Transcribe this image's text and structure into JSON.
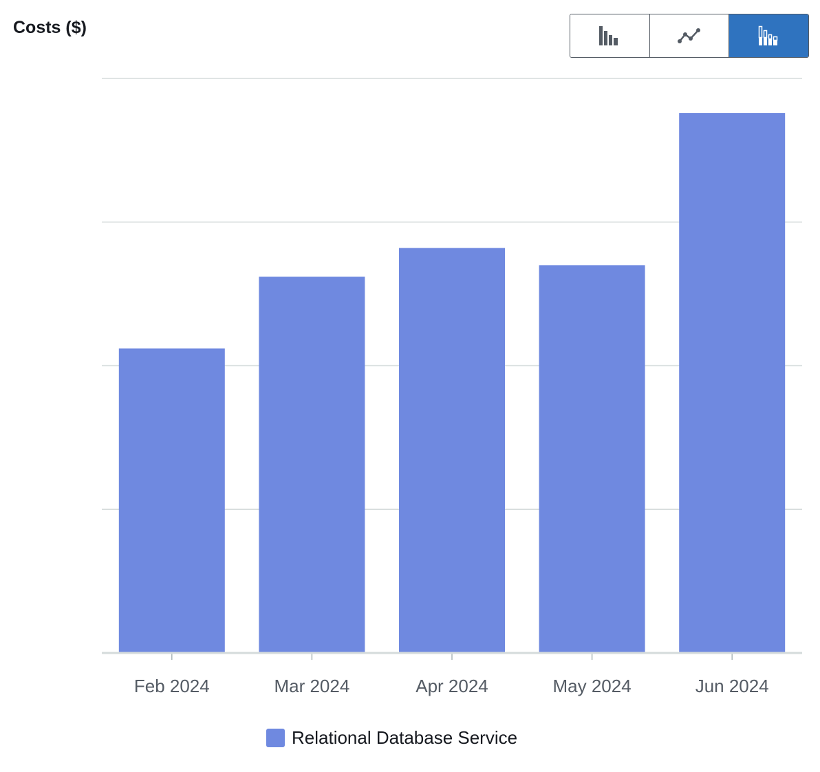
{
  "chart_title": "Costs ($)",
  "view_toggle": {
    "buttons": [
      {
        "name": "bar-chart-view",
        "icon": "bar-chart-icon",
        "selected": false
      },
      {
        "name": "line-chart-view",
        "icon": "line-chart-icon",
        "selected": false
      },
      {
        "name": "stacked-bar-chart-view",
        "icon": "stacked-bar-chart-icon",
        "selected": true
      }
    ],
    "selected_color": "#2f73bf"
  },
  "chart_data": {
    "type": "bar",
    "categories": [
      "Feb 2024",
      "Mar 2024",
      "Apr 2024",
      "May 2024",
      "Jun 2024"
    ],
    "series": [
      {
        "name": "Relational Database Service",
        "values": [
          53,
          65.5,
          70.5,
          67.5,
          94
        ],
        "color": "#6f89e0"
      }
    ],
    "ylim": [
      0,
      100
    ],
    "grid": true,
    "y_tick_labels_visible": false,
    "legend_position": "bottom"
  }
}
